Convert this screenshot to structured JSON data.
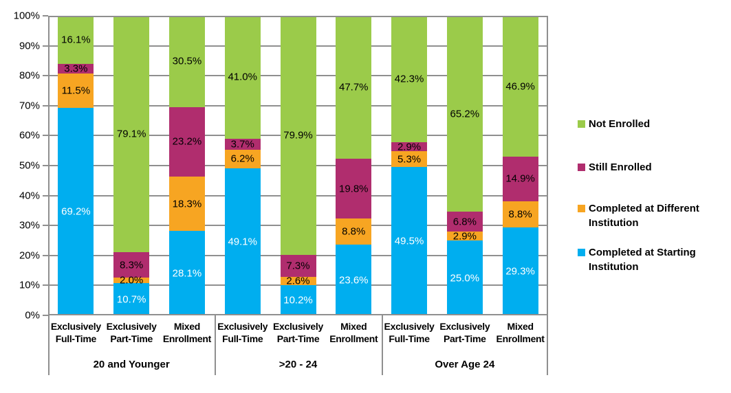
{
  "chart_data": {
    "type": "bar",
    "variant": "100-percent-stacked-column",
    "title": "",
    "xlabel": "",
    "ylabel": "",
    "ylim": [
      0,
      100
    ],
    "ytick_step": 10,
    "ytick_labels": [
      "0%",
      "10%",
      "20%",
      "30%",
      "40%",
      "50%",
      "60%",
      "70%",
      "80%",
      "90%",
      "100%"
    ],
    "grid": true,
    "grid_color": "#8f8f8f",
    "groups": [
      {
        "label": "20 and Younger"
      },
      {
        "label": ">20 - 24"
      },
      {
        "label": "Over Age 24"
      }
    ],
    "categories": [
      {
        "lines": [
          "Exclusively",
          "Full-Time"
        ]
      },
      {
        "lines": [
          "Exclusively",
          "Part-Time"
        ]
      },
      {
        "lines": [
          "Mixed",
          "Enrollment"
        ]
      }
    ],
    "series": [
      {
        "name": "Completed at Starting Institution",
        "color": "#00AEEF",
        "label_color": "#FFFFFF",
        "values": [
          69.2,
          10.7,
          28.1,
          49.1,
          10.2,
          23.6,
          49.5,
          25.0,
          29.3
        ]
      },
      {
        "name": "Completed at Different Institution",
        "color": "#F7A522",
        "label_color": "#000000",
        "values": [
          11.5,
          2.0,
          18.3,
          6.2,
          2.6,
          8.8,
          5.3,
          2.9,
          8.8
        ]
      },
      {
        "name": "Still Enrolled",
        "color": "#B02D6E",
        "label_color": "#000000",
        "values": [
          3.3,
          8.3,
          23.2,
          3.7,
          7.3,
          19.8,
          2.9,
          6.8,
          14.9
        ]
      },
      {
        "name": "Not Enrolled",
        "color": "#9BCB4A",
        "label_color": "#000000",
        "values": [
          16.1,
          79.1,
          30.5,
          41.0,
          79.9,
          47.7,
          42.3,
          65.2,
          46.9
        ]
      }
    ],
    "data_label_format": "{value}%",
    "legend": {
      "position": "right",
      "entries": [
        "Not Enrolled",
        "Still Enrolled",
        "Completed at Different Institution",
        "Completed at Starting Institution"
      ]
    }
  }
}
